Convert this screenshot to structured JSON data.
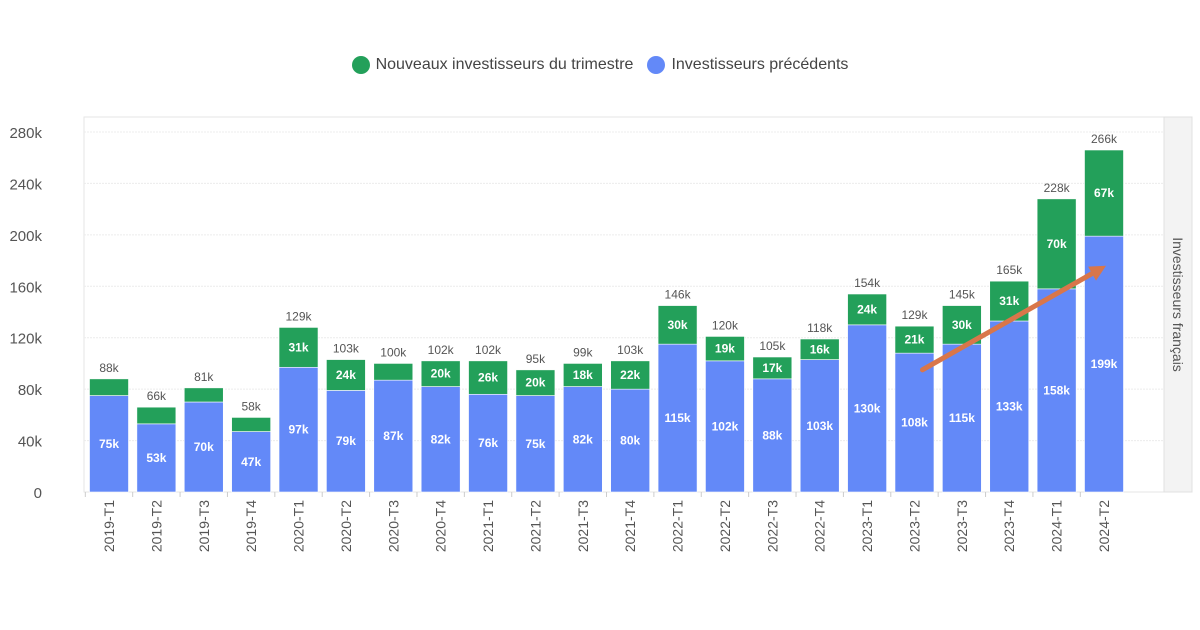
{
  "chart_data": {
    "type": "bar",
    "stacked": true,
    "categories": [
      "2019-T1",
      "2019-T2",
      "2019-T3",
      "2019-T4",
      "2020-T1",
      "2020-T2",
      "2020-T3",
      "2020-T4",
      "2021-T1",
      "2021-T2",
      "2021-T3",
      "2021-T4",
      "2022-T1",
      "2022-T2",
      "2022-T3",
      "2022-T4",
      "2023-T1",
      "2023-T2",
      "2023-T3",
      "2023-T4",
      "2024-T1",
      "2024-T2"
    ],
    "series": [
      {
        "name": "Investisseurs précédents",
        "color": "#6389f8",
        "values": [
          75,
          53,
          70,
          47,
          97,
          79,
          87,
          82,
          76,
          75,
          82,
          80,
          115,
          102,
          88,
          103,
          130,
          108,
          115,
          133,
          158,
          199
        ]
      },
      {
        "name": "Nouveaux investisseurs du trimestre",
        "color": "#23a05a",
        "values": [
          13,
          13,
          11,
          11,
          31,
          24,
          13,
          20,
          26,
          20,
          18,
          22,
          30,
          19,
          17,
          16,
          24,
          21,
          30,
          31,
          70,
          67
        ]
      }
    ],
    "totals": [
      88,
      66,
      81,
      58,
      129,
      103,
      100,
      102,
      102,
      95,
      99,
      103,
      146,
      120,
      105,
      118,
      154,
      129,
      145,
      165,
      228,
      266
    ],
    "value_unit_suffix": "k",
    "ylim": [
      0,
      280
    ],
    "yticks": [
      "0",
      "40k",
      "80k",
      "120k",
      "160k",
      "200k",
      "240k",
      "280k"
    ],
    "facet_label": "Investisseurs français",
    "legend_position": "top",
    "grid": true,
    "annotation": {
      "type": "arrow",
      "color": "#d9764a",
      "from_category": "2023-T2",
      "to_category": "2024-T2",
      "from_value": 95,
      "to_value": 176
    }
  }
}
